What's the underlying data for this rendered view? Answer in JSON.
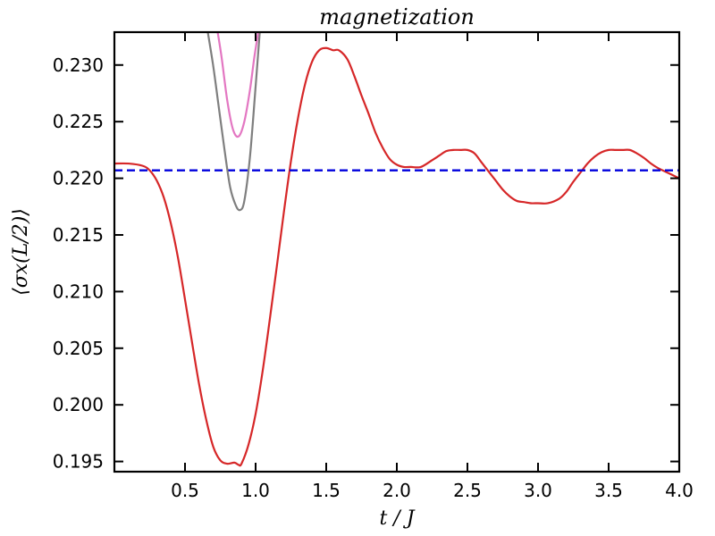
{
  "chart_data": {
    "type": "line",
    "title": "magnetization",
    "xlabel": "t / J",
    "ylabel": "⟨σx(L/2)⟩",
    "xlim": [
      0.0,
      4.0
    ],
    "ylim": [
      0.1941,
      0.2329
    ],
    "xticks": [
      0.5,
      1.0,
      1.5,
      2.0,
      2.5,
      3.0,
      3.5,
      4.0
    ],
    "xtick_labels": [
      "0.5",
      "1.0",
      "1.5",
      "2.0",
      "2.5",
      "3.0",
      "3.5",
      "4.0"
    ],
    "yticks": [
      0.195,
      0.2,
      0.205,
      0.21,
      0.215,
      0.22,
      0.225,
      0.23
    ],
    "ytick_labels": [
      "0.195",
      "0.200",
      "0.205",
      "0.210",
      "0.215",
      "0.220",
      "0.225",
      "0.230"
    ],
    "grid": false,
    "series": [
      {
        "color": "#d62728",
        "style": "solid",
        "x": [
          0.0,
          0.1,
          0.2,
          0.25,
          0.3,
          0.35,
          0.4,
          0.45,
          0.5,
          0.55,
          0.6,
          0.65,
          0.7,
          0.75,
          0.8,
          0.85,
          0.88,
          0.9,
          0.95,
          1.0,
          1.05,
          1.1,
          1.15,
          1.2,
          1.25,
          1.3,
          1.35,
          1.4,
          1.45,
          1.5,
          1.55,
          1.59,
          1.65,
          1.7,
          1.75,
          1.8,
          1.85,
          1.9,
          1.95,
          2.0,
          2.05,
          2.1,
          2.17,
          2.25,
          2.3,
          2.35,
          2.4,
          2.45,
          2.5,
          2.55,
          2.6,
          2.65,
          2.7,
          2.75,
          2.8,
          2.85,
          2.9,
          2.95,
          3.0,
          3.07,
          3.15,
          3.2,
          3.25,
          3.3,
          3.35,
          3.4,
          3.45,
          3.5,
          3.55,
          3.6,
          3.65,
          3.7,
          3.75,
          3.8,
          3.85,
          3.9,
          3.95,
          4.0
        ],
        "y": [
          0.2213,
          0.2213,
          0.2211,
          0.2207,
          0.2198,
          0.2183,
          0.216,
          0.213,
          0.2093,
          0.2055,
          0.2018,
          0.1987,
          0.1963,
          0.1951,
          0.1948,
          0.1949,
          0.1947,
          0.1948,
          0.1965,
          0.1992,
          0.203,
          0.2075,
          0.2122,
          0.217,
          0.2215,
          0.2253,
          0.2283,
          0.2303,
          0.2313,
          0.2315,
          0.2313,
          0.2313,
          0.2305,
          0.229,
          0.2273,
          0.2257,
          0.224,
          0.2227,
          0.2217,
          0.2212,
          0.221,
          0.221,
          0.221,
          0.2216,
          0.222,
          0.2224,
          0.2225,
          0.2225,
          0.2225,
          0.2222,
          0.2214,
          0.2206,
          0.2198,
          0.219,
          0.2184,
          0.218,
          0.2179,
          0.2178,
          0.2178,
          0.2178,
          0.2182,
          0.2188,
          0.2197,
          0.2205,
          0.2213,
          0.2219,
          0.2223,
          0.2225,
          0.2225,
          0.2225,
          0.2225,
          0.2222,
          0.2218,
          0.2213,
          0.2209,
          0.2206,
          0.2203,
          0.22
        ]
      },
      {
        "color": "#0000dd",
        "style": "dashed",
        "x": [
          0.0,
          4.0
        ],
        "y": [
          0.2207,
          0.2207
        ]
      },
      {
        "color": "#7f7f7f",
        "style": "solid",
        "x": [
          0.66,
          0.7,
          0.74,
          0.78,
          0.82,
          0.86,
          0.89,
          0.92,
          0.96,
          1.0,
          1.03
        ],
        "y": [
          0.233,
          0.2299,
          0.2262,
          0.2225,
          0.2192,
          0.2176,
          0.2172,
          0.218,
          0.2219,
          0.2281,
          0.233
        ]
      },
      {
        "color": "#e377c2",
        "style": "solid",
        "x": [
          0.73,
          0.76,
          0.8,
          0.84,
          0.88,
          0.92,
          0.96,
          0.99,
          1.02
        ],
        "y": [
          0.233,
          0.2306,
          0.2268,
          0.2243,
          0.2237,
          0.225,
          0.2278,
          0.2306,
          0.233
        ]
      }
    ]
  }
}
